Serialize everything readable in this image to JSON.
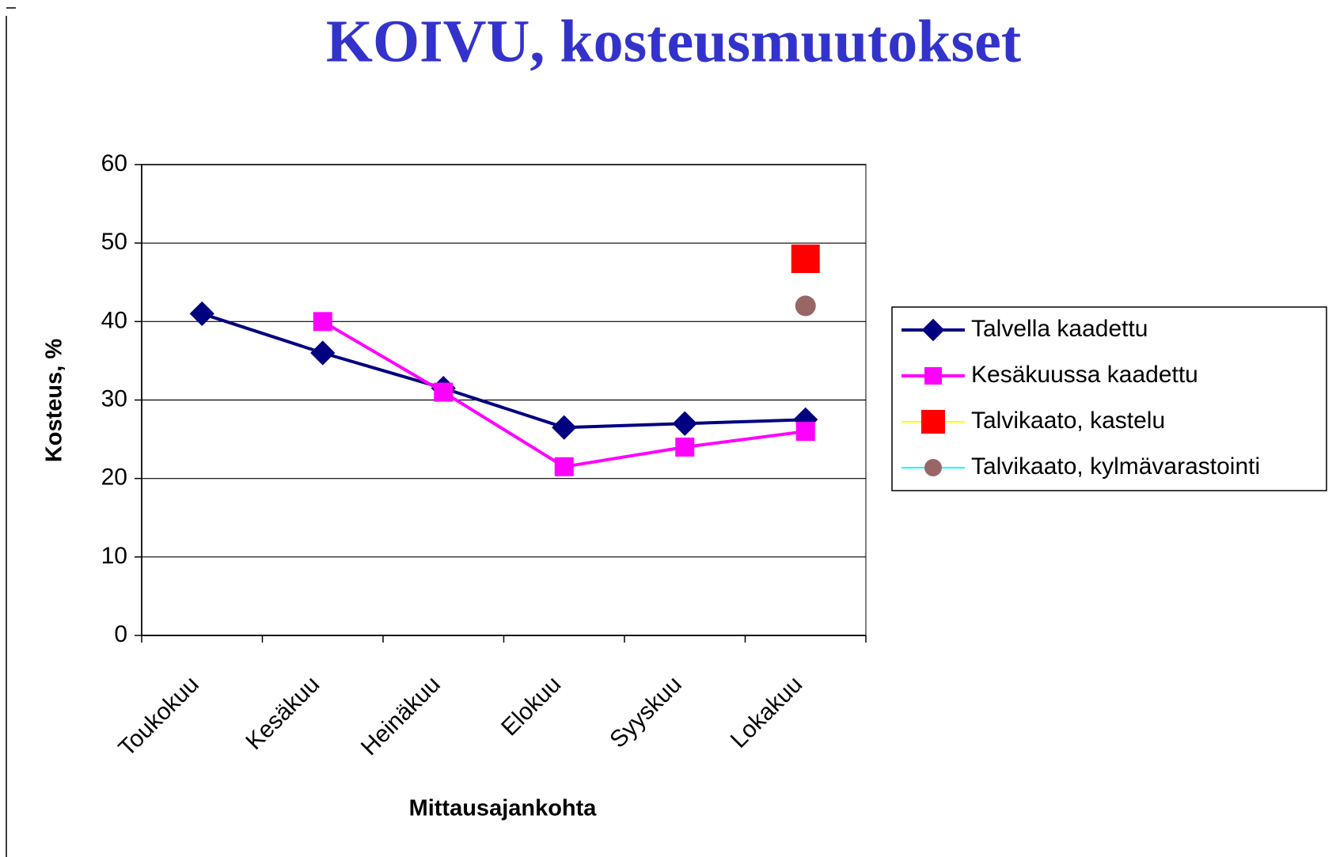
{
  "chart_data": {
    "type": "line",
    "title": "KOIVU, kosteusmuutokset",
    "x_label": "Mittausajankohta",
    "y_label": "Kosteus, %",
    "categories": [
      "Toukokuu",
      "Kesäkuu",
      "Heinäkuu",
      "Elokuu",
      "Syyskuu",
      "Lokakuu"
    ],
    "series": [
      {
        "name": "Talvella kaadettu",
        "color": "#000080",
        "marker": "diamond",
        "marker_color": "#000080",
        "values": [
          41,
          36,
          31.5,
          26.5,
          27,
          27.5
        ]
      },
      {
        "name": "Kesäkuussa kaadettu",
        "color": "#ff00ff",
        "marker": "square",
        "marker_color": "#ff00ff",
        "values": [
          null,
          40,
          31,
          21.5,
          24,
          26
        ]
      },
      {
        "name": "Talvikaato, kastelu",
        "color": "#ffff00",
        "marker": "square",
        "marker_color": "#ff0000",
        "values": [
          null,
          null,
          null,
          null,
          null,
          48
        ]
      },
      {
        "name": "Talvikaato, kylmävarastointi",
        "color": "#00ffff",
        "marker": "circle",
        "marker_color": "#996666",
        "values": [
          null,
          null,
          null,
          null,
          null,
          42
        ]
      }
    ],
    "ylim": [
      0,
      60
    ],
    "yticks": [
      0,
      10,
      20,
      30,
      40,
      50,
      60
    ],
    "grid": true,
    "legend": "right"
  }
}
